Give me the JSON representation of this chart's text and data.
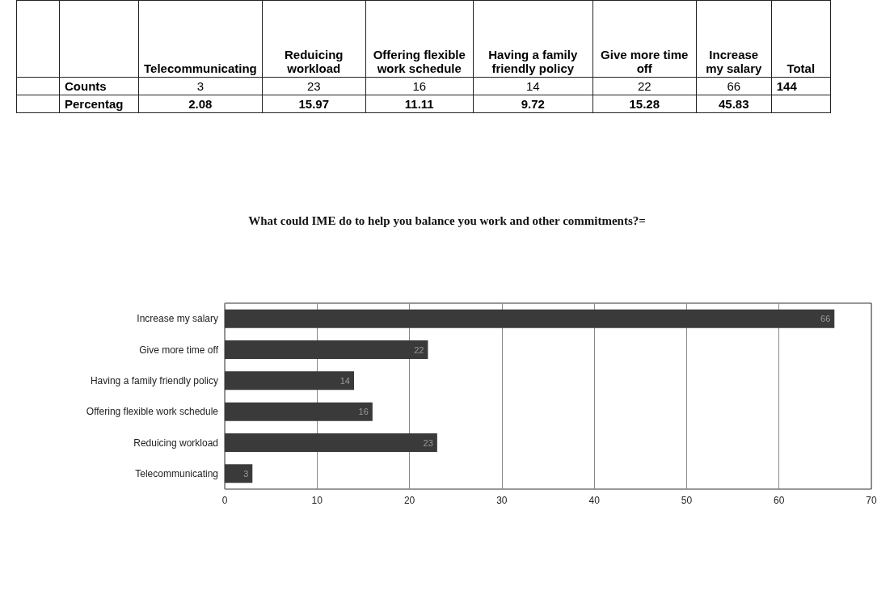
{
  "chart_data": {
    "type": "bar",
    "orientation": "horizontal",
    "title": "What could IME do to help you balance you work and other commitments?=",
    "categories": [
      "Increase my salary",
      "Give more time off",
      "Having a family friendly policy",
      "Offering flexible work schedule",
      "Reduicing workload",
      "Telecommunicating"
    ],
    "values": [
      66,
      22,
      14,
      16,
      23,
      3
    ],
    "color": "#3a3a3a",
    "xlim": [
      0,
      70
    ],
    "xticks": [
      0,
      10,
      20,
      30,
      40,
      50,
      60,
      70
    ],
    "grid": "x",
    "data_labels": true,
    "annotations": [
      "Counts",
      "Percentag",
      "Total",
      "144",
      "3",
      "23",
      "16",
      "14",
      "22",
      "66",
      "2.08",
      "15.97",
      "11.11",
      "9.72",
      "15.28",
      "45.83"
    ]
  }
}
